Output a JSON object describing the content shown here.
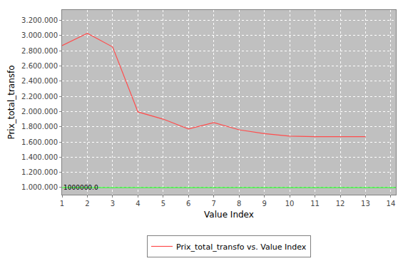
{
  "chart_data": {
    "type": "line",
    "x_label": "Value Index",
    "y_label": "Prix_total_transfo",
    "x": [
      1,
      2,
      3,
      4,
      5,
      6,
      7,
      8,
      9,
      10,
      11,
      12,
      13
    ],
    "series": [
      {
        "name": "Prix_total_transfo vs. Value Index",
        "color": "#ff4d4d",
        "values": [
          2868000,
          3030000,
          2850000,
          1995000,
          1900000,
          1770000,
          1855000,
          1760000,
          1710000,
          1676000,
          1670000,
          1670000,
          1670000
        ]
      }
    ],
    "reference_line": {
      "value": 1000000,
      "label": "1000000.0",
      "color": "#00ff00"
    },
    "xlim": [
      1,
      14.2
    ],
    "xticks": [
      1,
      2,
      3,
      4,
      5,
      6,
      7,
      8,
      9,
      10,
      11,
      12,
      13,
      14
    ],
    "ylim": [
      906000,
      3336000
    ],
    "yticks": [
      {
        "value": 1000000,
        "label": "1.000.000"
      },
      {
        "value": 1200000,
        "label": "1.200.000"
      },
      {
        "value": 1400000,
        "label": "1.400.000"
      },
      {
        "value": 1600000,
        "label": "1.600.000"
      },
      {
        "value": 1800000,
        "label": "1.800.000"
      },
      {
        "value": 2000000,
        "label": "2.000.000"
      },
      {
        "value": 2200000,
        "label": "2.200.000"
      },
      {
        "value": 2400000,
        "label": "2.400.000"
      },
      {
        "value": 2600000,
        "label": "2.600.000"
      },
      {
        "value": 2800000,
        "label": "2.800.000"
      },
      {
        "value": 3000000,
        "label": "3.000.000"
      },
      {
        "value": 3200000,
        "label": "3.200.000"
      }
    ],
    "grid": true,
    "legend": "bottom"
  }
}
